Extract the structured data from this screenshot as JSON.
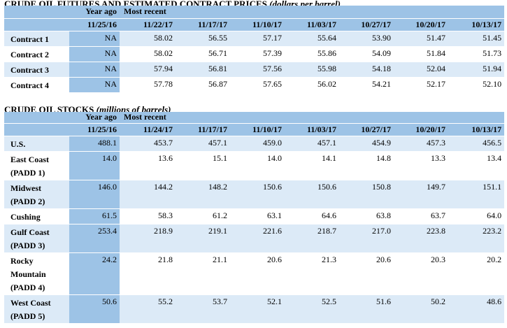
{
  "futures": {
    "title_main": "CRUDE OIL FUTURES AND ESTIMATED CONTRACT PRICES",
    "title_unit": "(dollars per barrel)",
    "year_ago_label": "Year ago",
    "most_recent_label": "Most recent",
    "dates": [
      "11/25/16",
      "11/22/17",
      "11/17/17",
      "11/10/17",
      "11/03/17",
      "10/27/17",
      "10/20/17",
      "10/13/17"
    ],
    "rows": [
      {
        "label": "Contract 1",
        "values": [
          "NA",
          "58.02",
          "56.55",
          "57.17",
          "55.64",
          "53.90",
          "51.47",
          "51.45"
        ]
      },
      {
        "label": "Contract 2",
        "values": [
          "NA",
          "58.02",
          "56.71",
          "57.39",
          "55.86",
          "54.09",
          "51.84",
          "51.73"
        ]
      },
      {
        "label": "Contract 3",
        "values": [
          "NA",
          "57.94",
          "56.81",
          "57.56",
          "55.98",
          "54.18",
          "52.04",
          "51.94"
        ]
      },
      {
        "label": "Contract 4",
        "values": [
          "NA",
          "57.78",
          "56.87",
          "57.65",
          "56.02",
          "54.21",
          "52.17",
          "52.10"
        ]
      }
    ]
  },
  "stocks": {
    "title_main": "CRUDE OIL STOCKS",
    "title_unit": "(millions of barrels)",
    "year_ago_label": "Year ago",
    "most_recent_label": "Most recent",
    "dates": [
      "11/25/16",
      "11/24/17",
      "11/17/17",
      "11/10/17",
      "11/03/17",
      "10/27/17",
      "10/20/17",
      "10/13/17"
    ],
    "rows": [
      {
        "label": "U.S.",
        "values": [
          "488.1",
          "453.7",
          "457.1",
          "459.0",
          "457.1",
          "454.9",
          "457.3",
          "456.5"
        ]
      },
      {
        "label": "East Coast (PADD 1)",
        "values": [
          "14.0",
          "13.6",
          "15.1",
          "14.0",
          "14.1",
          "14.8",
          "13.3",
          "13.4"
        ]
      },
      {
        "label": "Midwest (PADD 2)",
        "values": [
          "146.0",
          "144.2",
          "148.2",
          "150.6",
          "150.6",
          "150.8",
          "149.7",
          "151.1"
        ]
      },
      {
        "label": "Cushing",
        "values": [
          "61.5",
          "58.3",
          "61.2",
          "63.1",
          "64.6",
          "63.8",
          "63.7",
          "64.0"
        ]
      },
      {
        "label": "Gulf Coast (PADD 3)",
        "values": [
          "253.4",
          "218.9",
          "219.1",
          "221.6",
          "218.7",
          "217.0",
          "223.8",
          "223.2"
        ]
      },
      {
        "label": "Rocky Mountain (PADD 4)",
        "values": [
          "24.2",
          "21.8",
          "21.1",
          "20.6",
          "21.3",
          "20.6",
          "20.3",
          "20.2"
        ]
      },
      {
        "label": "West Coast (PADD 5)",
        "values": [
          "50.6",
          "55.2",
          "53.7",
          "52.1",
          "52.5",
          "51.6",
          "50.2",
          "48.6"
        ]
      }
    ]
  }
}
